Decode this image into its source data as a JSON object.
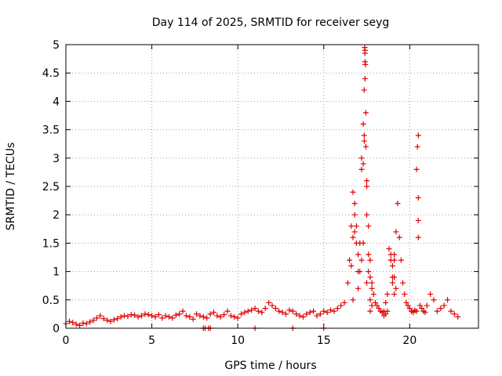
{
  "chart_data": {
    "type": "scatter",
    "title": "Day 114 of 2025, SRMTID for receiver seyg",
    "xlabel": "GPS time / hours",
    "ylabel": "SRMTID / TECUs",
    "xlim": [
      0,
      24
    ],
    "ylim": [
      0,
      5
    ],
    "xticks": [
      0,
      5,
      10,
      15,
      20
    ],
    "xtick_labels": [
      "0",
      "5",
      "10",
      "15",
      "20"
    ],
    "yticks": [
      0,
      0.5,
      1,
      1.5,
      2,
      2.5,
      3,
      3.5,
      4,
      4.5,
      5
    ],
    "ytick_labels": [
      "0",
      "0.5",
      "1",
      "1.5",
      "2",
      "2.5",
      "3",
      "3.5",
      "4",
      "4.5",
      "5"
    ],
    "grid": true,
    "marker": "+",
    "marker_color": "#e00000",
    "series": [
      {
        "name": "SRMTID",
        "x": [
          0.0,
          0.2,
          0.4,
          0.6,
          0.8,
          1.0,
          1.2,
          1.4,
          1.6,
          1.8,
          2.0,
          2.2,
          2.4,
          2.6,
          2.8,
          3.0,
          3.2,
          3.4,
          3.6,
          3.8,
          4.0,
          4.2,
          4.4,
          4.6,
          4.8,
          5.0,
          5.2,
          5.4,
          5.6,
          5.8,
          6.0,
          6.2,
          6.4,
          6.6,
          6.8,
          7.0,
          7.2,
          7.4,
          7.6,
          7.8,
          8.0,
          8.2,
          8.4,
          8.6,
          8.8,
          9.0,
          9.2,
          9.4,
          9.6,
          9.8,
          10.0,
          10.2,
          10.4,
          10.6,
          10.8,
          11.0,
          11.2,
          11.4,
          11.6,
          11.8,
          12.0,
          12.2,
          12.4,
          12.6,
          12.8,
          13.0,
          13.2,
          13.4,
          13.6,
          13.8,
          14.0,
          14.2,
          14.4,
          14.6,
          14.8,
          15.0,
          15.2,
          15.4,
          15.6,
          15.8,
          16.0,
          16.2,
          16.4,
          16.5,
          16.6,
          16.7,
          16.8,
          16.9,
          17.0,
          17.1,
          17.2,
          17.3,
          17.35,
          17.4,
          17.45,
          17.5,
          17.6,
          17.7,
          17.8,
          17.9,
          18.0,
          18.1,
          18.2,
          18.3,
          18.4,
          18.5,
          18.6,
          18.7,
          18.8,
          18.9,
          19.0,
          19.1,
          19.2,
          19.3,
          19.4,
          19.5,
          19.6,
          19.7,
          19.8,
          19.9,
          20.0,
          20.1,
          20.2,
          20.3,
          20.4,
          20.5,
          20.6,
          20.7,
          20.8,
          20.9,
          21.0,
          21.2,
          21.4,
          21.6,
          21.8,
          22.0,
          22.2,
          22.4,
          22.6,
          22.8,
          16.6,
          16.7,
          16.8,
          16.9,
          17.0,
          17.1,
          17.2,
          17.3,
          17.35,
          17.4,
          17.5,
          17.6,
          17.7,
          17.8,
          18.5,
          18.6,
          18.7,
          18.9,
          19.0,
          19.1,
          19.2,
          20.4,
          20.5,
          16.7,
          17.0,
          17.3,
          17.36,
          17.4,
          17.45,
          17.5,
          17.6,
          17.7,
          17.8,
          19.0,
          19.1,
          20.5,
          16.8,
          17.2,
          17.5,
          17.7,
          19.1,
          20.45,
          20.5,
          8.0,
          8.1,
          8.3,
          8.4,
          11.0,
          13.2,
          15.0,
          17.38,
          17.4,
          17.42
        ],
        "y": [
          0.08,
          0.12,
          0.1,
          0.07,
          0.05,
          0.09,
          0.08,
          0.11,
          0.14,
          0.18,
          0.22,
          0.17,
          0.14,
          0.12,
          0.15,
          0.17,
          0.2,
          0.22,
          0.21,
          0.24,
          0.23,
          0.2,
          0.22,
          0.25,
          0.24,
          0.22,
          0.2,
          0.24,
          0.18,
          0.22,
          0.2,
          0.18,
          0.23,
          0.25,
          0.3,
          0.22,
          0.2,
          0.16,
          0.25,
          0.22,
          0.2,
          0.18,
          0.25,
          0.28,
          0.22,
          0.2,
          0.24,
          0.3,
          0.22,
          0.2,
          0.18,
          0.25,
          0.28,
          0.3,
          0.32,
          0.35,
          0.3,
          0.28,
          0.35,
          0.45,
          0.4,
          0.35,
          0.3,
          0.28,
          0.25,
          0.32,
          0.3,
          0.25,
          0.22,
          0.2,
          0.25,
          0.28,
          0.3,
          0.22,
          0.25,
          0.3,
          0.28,
          0.32,
          0.3,
          0.35,
          0.4,
          0.45,
          0.8,
          1.2,
          1.8,
          2.4,
          2.0,
          1.5,
          1.0,
          1.5,
          2.8,
          3.6,
          4.2,
          4.9,
          3.8,
          2.5,
          1.8,
          1.2,
          0.8,
          0.6,
          0.45,
          0.4,
          0.35,
          0.3,
          0.28,
          0.22,
          0.25,
          0.3,
          1.4,
          1.2,
          0.9,
          1.3,
          1.7,
          2.2,
          1.6,
          1.2,
          0.8,
          0.6,
          0.45,
          0.4,
          0.35,
          0.3,
          0.28,
          0.32,
          0.3,
          3.4,
          0.4,
          0.35,
          0.3,
          0.28,
          0.4,
          0.6,
          0.5,
          0.3,
          0.35,
          0.4,
          0.5,
          0.3,
          0.25,
          0.2,
          1.1,
          1.6,
          2.2,
          1.8,
          1.3,
          1.0,
          3.0,
          2.9,
          3.4,
          4.4,
          2.6,
          1.3,
          0.9,
          0.7,
          0.3,
          0.45,
          0.6,
          1.3,
          1.1,
          0.9,
          0.7,
          2.8,
          2.3,
          0.5,
          0.7,
          1.5,
          3.3,
          4.7,
          3.2,
          2.0,
          1.0,
          0.5,
          0.4,
          0.8,
          0.6,
          1.9,
          1.7,
          1.2,
          0.8,
          0.3,
          1.2,
          3.2,
          1.6,
          0.0,
          0.0,
          0.0,
          0.0,
          0.0,
          0.0,
          0.0,
          4.95,
          4.85,
          4.65
        ]
      }
    ]
  }
}
